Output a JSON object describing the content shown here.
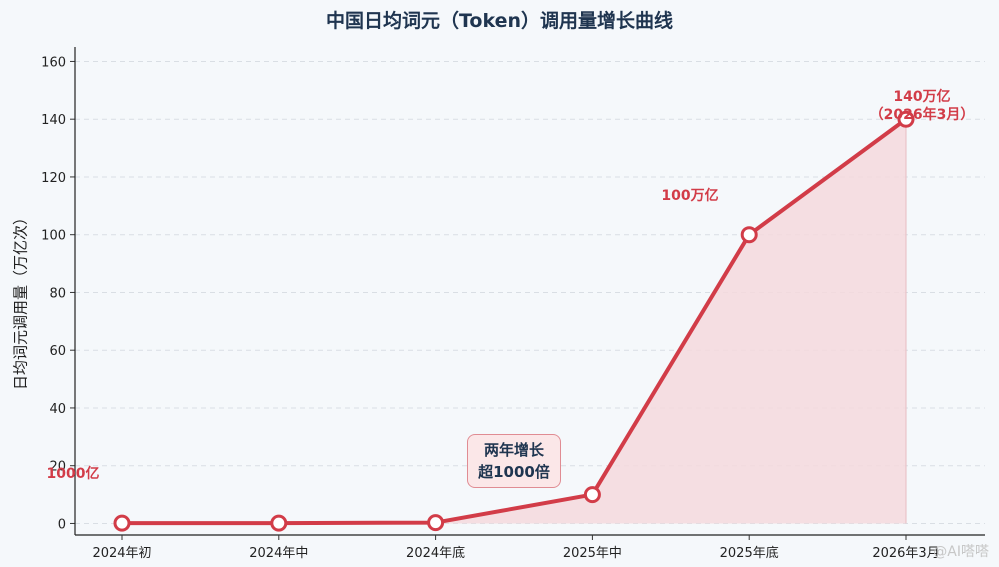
{
  "chart_data": {
    "type": "area",
    "title": "中国日均词元（Token）调用量增长曲线",
    "xlabel": "",
    "ylabel": "日均词元调用量（万亿次）",
    "categories": [
      "2024年初",
      "2024年中",
      "2024年底",
      "2025年中",
      "2025年底",
      "2026年3月"
    ],
    "series": [
      {
        "values": [
          0.1,
          0.1,
          0.3,
          10,
          100,
          140
        ]
      }
    ],
    "ylim": [
      -4,
      165
    ],
    "yticks": [
      0,
      20,
      40,
      60,
      80,
      100,
      120,
      140,
      160
    ],
    "grid": "horizontal-dashed",
    "annotations": [
      "1000亿",
      "100万亿",
      "140万亿",
      "（2026年3月）"
    ],
    "callout": {
      "line1": "两年增长",
      "line2": "超1000倍"
    },
    "colors": {
      "line": "#d23c48",
      "fill": "#f4d9dd",
      "title": "#1f3550",
      "annotation": "#d23c48"
    }
  },
  "watermark": "@AI嗒嗒"
}
